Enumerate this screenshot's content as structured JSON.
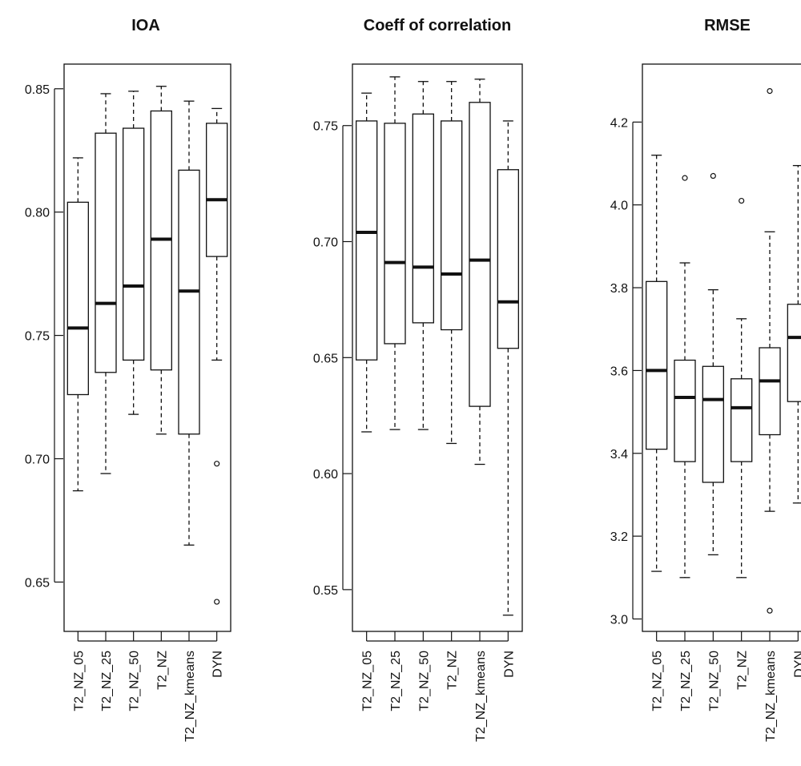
{
  "chart_data": [
    {
      "type": "boxplot",
      "title": "IOA",
      "categories": [
        "T2_NZ_05",
        "T2_NZ_25",
        "T2_NZ_50",
        "T2_NZ",
        "T2_NZ_kmeans",
        "DYN"
      ],
      "ylim": [
        0.63,
        0.86
      ],
      "yticks": [
        "0.65",
        "0.70",
        "0.75",
        "0.80",
        "0.85"
      ],
      "boxes": [
        {
          "min": 0.687,
          "q1": 0.726,
          "median": 0.753,
          "q3": 0.804,
          "max": 0.822,
          "outliers": []
        },
        {
          "min": 0.694,
          "q1": 0.735,
          "median": 0.763,
          "q3": 0.832,
          "max": 0.848,
          "outliers": []
        },
        {
          "min": 0.718,
          "q1": 0.74,
          "median": 0.77,
          "q3": 0.834,
          "max": 0.849,
          "outliers": []
        },
        {
          "min": 0.71,
          "q1": 0.736,
          "median": 0.789,
          "q3": 0.841,
          "max": 0.851,
          "outliers": []
        },
        {
          "min": 0.665,
          "q1": 0.71,
          "median": 0.768,
          "q3": 0.817,
          "max": 0.845,
          "outliers": []
        },
        {
          "min": 0.74,
          "q1": 0.782,
          "median": 0.805,
          "q3": 0.836,
          "max": 0.842,
          "outliers": [
            0.698,
            0.642
          ]
        }
      ]
    },
    {
      "type": "boxplot",
      "title": "Coeff of correlation",
      "categories": [
        "T2_NZ_05",
        "T2_NZ_25",
        "T2_NZ_50",
        "T2_NZ",
        "T2_NZ_kmeans",
        "DYN"
      ],
      "ylim": [
        0.532,
        0.7765
      ],
      "yticks": [
        "0.55",
        "0.60",
        "0.65",
        "0.70",
        "0.75"
      ],
      "boxes": [
        {
          "min": 0.618,
          "q1": 0.649,
          "median": 0.704,
          "q3": 0.752,
          "max": 0.764,
          "outliers": []
        },
        {
          "min": 0.619,
          "q1": 0.656,
          "median": 0.691,
          "q3": 0.751,
          "max": 0.771,
          "outliers": []
        },
        {
          "min": 0.619,
          "q1": 0.665,
          "median": 0.689,
          "q3": 0.755,
          "max": 0.769,
          "outliers": []
        },
        {
          "min": 0.613,
          "q1": 0.662,
          "median": 0.686,
          "q3": 0.752,
          "max": 0.769,
          "outliers": []
        },
        {
          "min": 0.604,
          "q1": 0.629,
          "median": 0.692,
          "q3": 0.76,
          "max": 0.77,
          "outliers": []
        },
        {
          "min": 0.539,
          "q1": 0.654,
          "median": 0.674,
          "q3": 0.731,
          "max": 0.752,
          "outliers": []
        }
      ]
    },
    {
      "type": "boxplot",
      "title": "RMSE",
      "categories": [
        "T2_NZ_05",
        "T2_NZ_25",
        "T2_NZ_50",
        "T2_NZ",
        "T2_NZ_kmeans",
        "DYN"
      ],
      "ylim": [
        2.97,
        4.34
      ],
      "yticks": [
        "3.0",
        "3.2",
        "3.4",
        "3.6",
        "3.8",
        "4.0",
        "4.2"
      ],
      "boxes": [
        {
          "min": 3.115,
          "q1": 3.41,
          "median": 3.6,
          "q3": 3.815,
          "max": 4.12,
          "outliers": []
        },
        {
          "min": 3.1,
          "q1": 3.38,
          "median": 3.535,
          "q3": 3.625,
          "max": 3.86,
          "outliers": [
            4.065
          ]
        },
        {
          "min": 3.155,
          "q1": 3.33,
          "median": 3.53,
          "q3": 3.61,
          "max": 3.795,
          "outliers": [
            4.07
          ]
        },
        {
          "min": 3.1,
          "q1": 3.38,
          "median": 3.51,
          "q3": 3.58,
          "max": 3.725,
          "outliers": [
            4.01
          ]
        },
        {
          "min": 3.26,
          "q1": 3.445,
          "median": 3.575,
          "q3": 3.655,
          "max": 3.935,
          "outliers": [
            4.275,
            3.02
          ]
        },
        {
          "min": 3.28,
          "q1": 3.525,
          "median": 3.68,
          "q3": 3.76,
          "max": 4.095,
          "outliers": []
        }
      ]
    }
  ]
}
